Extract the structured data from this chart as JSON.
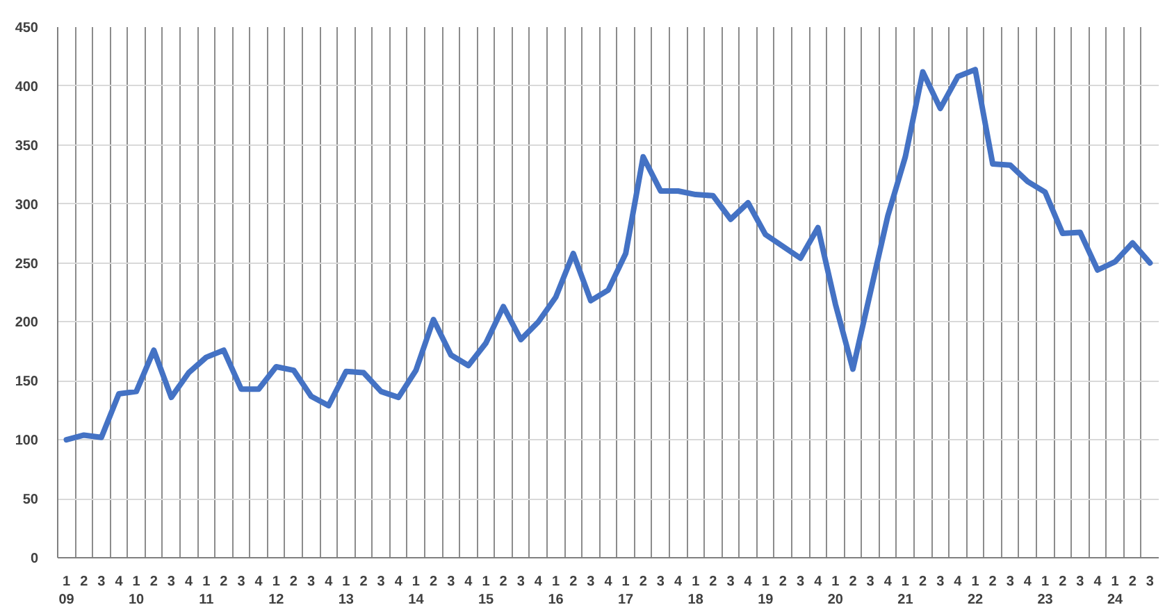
{
  "chart_data": {
    "type": "line",
    "categories": [
      "1\n09",
      "2",
      "3",
      "4",
      "1\n10",
      "2",
      "3",
      "4",
      "1\n11",
      "2",
      "3",
      "4",
      "1\n12",
      "2",
      "3",
      "4",
      "1\n13",
      "2",
      "3",
      "4",
      "1\n14",
      "2",
      "3",
      "4",
      "1\n15",
      "2",
      "3",
      "4",
      "1\n16",
      "2",
      "3",
      "4",
      "1\n17",
      "2",
      "3",
      "4",
      "1\n18",
      "2",
      "3",
      "4",
      "1\n19",
      "2",
      "3",
      "4",
      "1\n20",
      "2",
      "3",
      "4",
      "1\n21",
      "2",
      "3",
      "4",
      "1\n22",
      "2",
      "3",
      "4",
      "1\n23",
      "2",
      "3",
      "4",
      "1\n24",
      "2",
      "3"
    ],
    "series": [
      {
        "color": "#4472c4",
        "values": [
          100,
          104,
          102,
          139,
          141,
          176,
          136,
          157,
          170,
          176,
          143,
          143,
          162,
          159,
          137,
          129,
          158,
          157,
          141,
          136,
          159,
          202,
          172,
          163,
          182,
          213,
          185,
          200,
          221,
          258,
          218,
          227,
          258,
          340,
          311,
          311,
          308,
          307,
          287,
          301,
          274,
          264,
          254,
          280,
          215,
          160,
          225,
          290,
          340,
          412,
          381,
          408,
          414,
          334,
          333,
          319,
          310,
          275,
          276,
          244,
          251,
          267,
          250
        ]
      }
    ],
    "ylim": [
      0,
      450
    ],
    "yticks": [
      0,
      50,
      100,
      150,
      200,
      250,
      300,
      350,
      400,
      450
    ],
    "grid": true,
    "line_style": "solid"
  }
}
